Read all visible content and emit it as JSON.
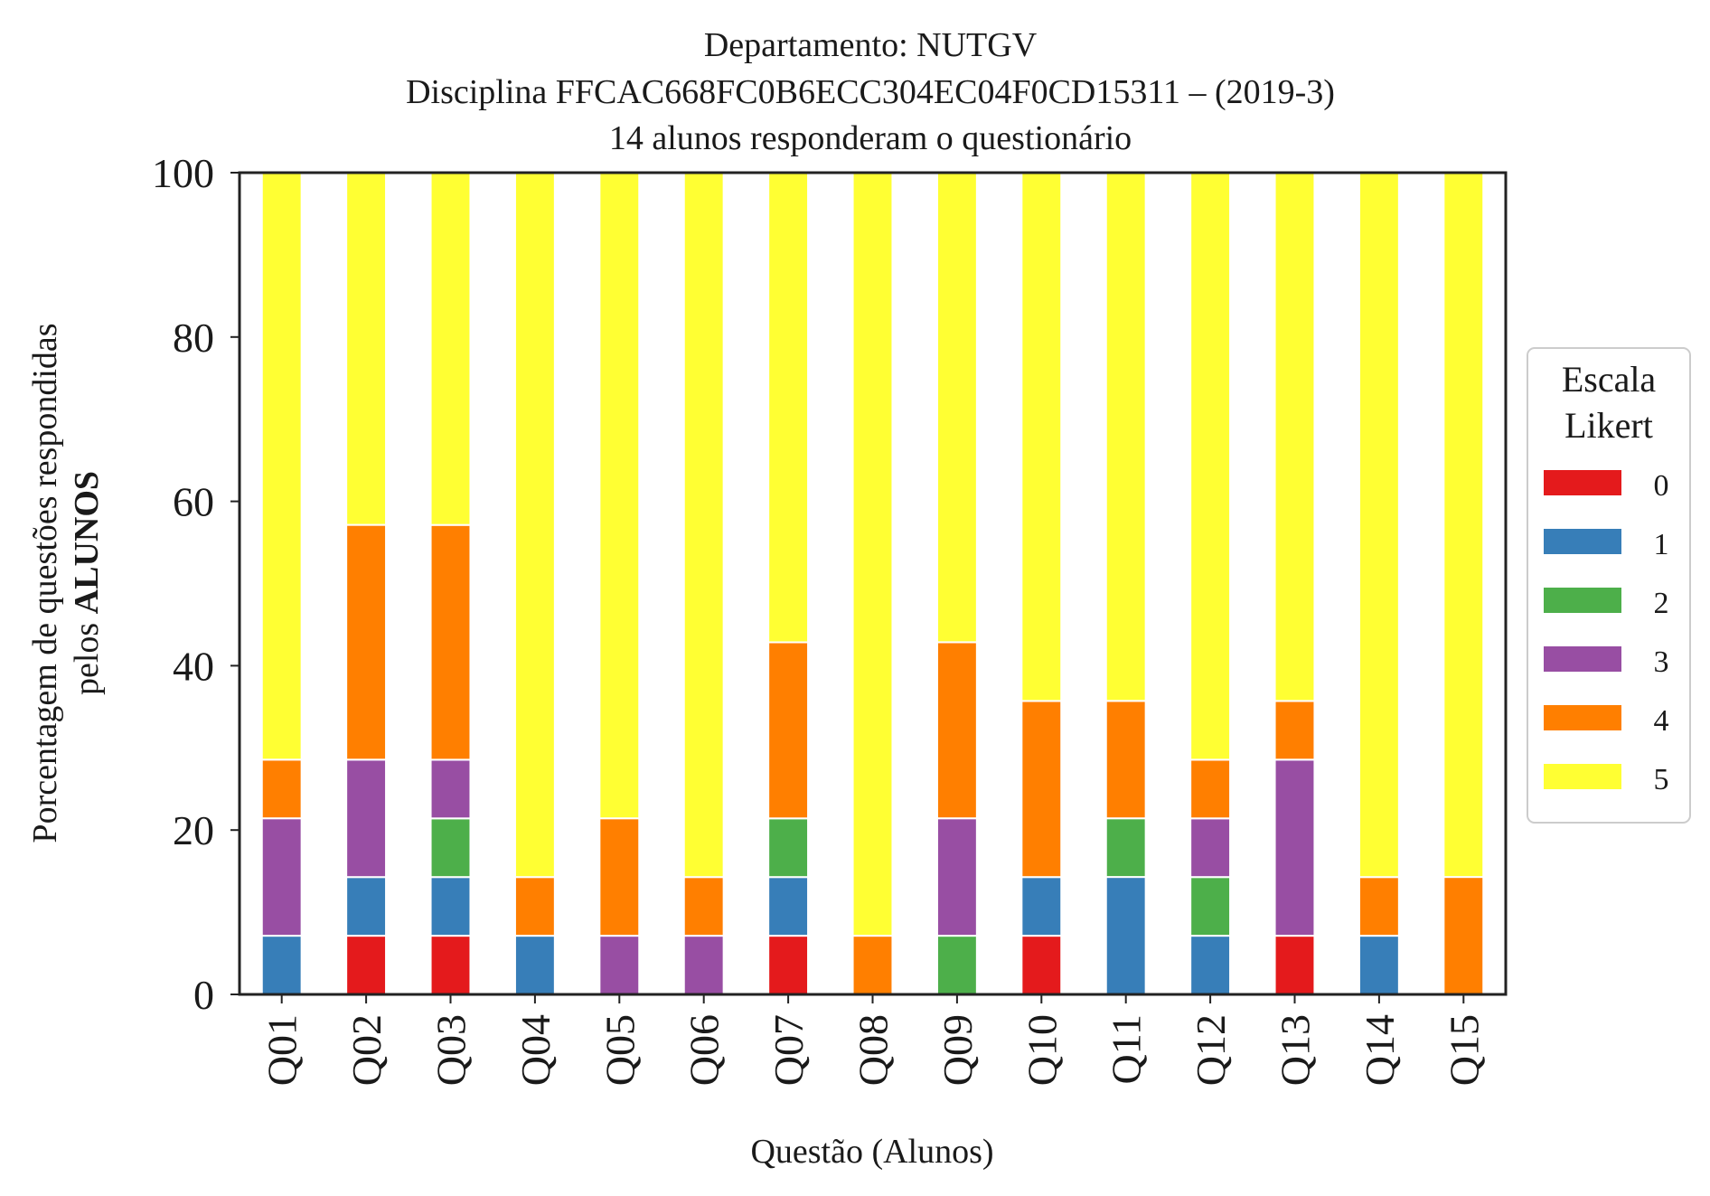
{
  "chart_data": {
    "type": "bar",
    "stacked": true,
    "title_lines": [
      "Departamento: NUTGV",
      "Disciplina FFCAC668FC0B6ECC304EC04F0CD15311 – (2019-3)",
      "14 alunos responderam o questionário"
    ],
    "xlabel": "Questão (Alunos)",
    "ylabel_line1": "Porcentagem de questões respondidas",
    "ylabel_line2_prefix": "pelos ",
    "ylabel_line2_bold": "ALUNOS",
    "ylim": [
      0,
      100
    ],
    "yticks": [
      "0",
      "20",
      "40",
      "60",
      "80",
      "100"
    ],
    "grid": false,
    "categories": [
      "Q01",
      "Q02",
      "Q03",
      "Q04",
      "Q05",
      "Q06",
      "Q07",
      "Q08",
      "Q09",
      "Q10",
      "Q11",
      "Q12",
      "Q13",
      "Q14",
      "Q15"
    ],
    "legend": {
      "title_line1": "Escala",
      "title_line2": "Likert",
      "placement": "right-center"
    },
    "series": [
      {
        "name": "0",
        "color": "#e41a1c",
        "values": [
          0,
          7.14,
          7.14,
          0,
          0,
          0,
          7.14,
          0,
          0,
          7.14,
          0,
          0,
          7.14,
          0,
          0
        ]
      },
      {
        "name": "1",
        "color": "#377eb8",
        "values": [
          7.14,
          7.14,
          7.14,
          7.14,
          0,
          0,
          7.14,
          0,
          0,
          7.14,
          14.29,
          7.14,
          0,
          7.14,
          0
        ]
      },
      {
        "name": "2",
        "color": "#4daf4a",
        "values": [
          0,
          0,
          7.14,
          0,
          0,
          0,
          7.14,
          0,
          7.14,
          0,
          7.14,
          7.14,
          0,
          0,
          0
        ]
      },
      {
        "name": "3",
        "color": "#984ea3",
        "values": [
          14.29,
          14.29,
          7.14,
          0,
          7.14,
          7.14,
          0,
          0,
          14.29,
          0,
          0,
          7.14,
          21.43,
          0,
          0
        ]
      },
      {
        "name": "4",
        "color": "#ff7f00",
        "values": [
          7.14,
          28.57,
          28.57,
          7.14,
          14.29,
          7.14,
          21.43,
          7.14,
          21.43,
          21.43,
          14.29,
          7.14,
          7.14,
          7.14,
          14.29
        ]
      },
      {
        "name": "5",
        "color": "#ffff33",
        "values": [
          71.43,
          42.86,
          42.86,
          85.71,
          78.57,
          85.71,
          57.14,
          92.86,
          57.14,
          64.29,
          64.29,
          71.43,
          64.29,
          85.71,
          85.71
        ]
      }
    ]
  }
}
